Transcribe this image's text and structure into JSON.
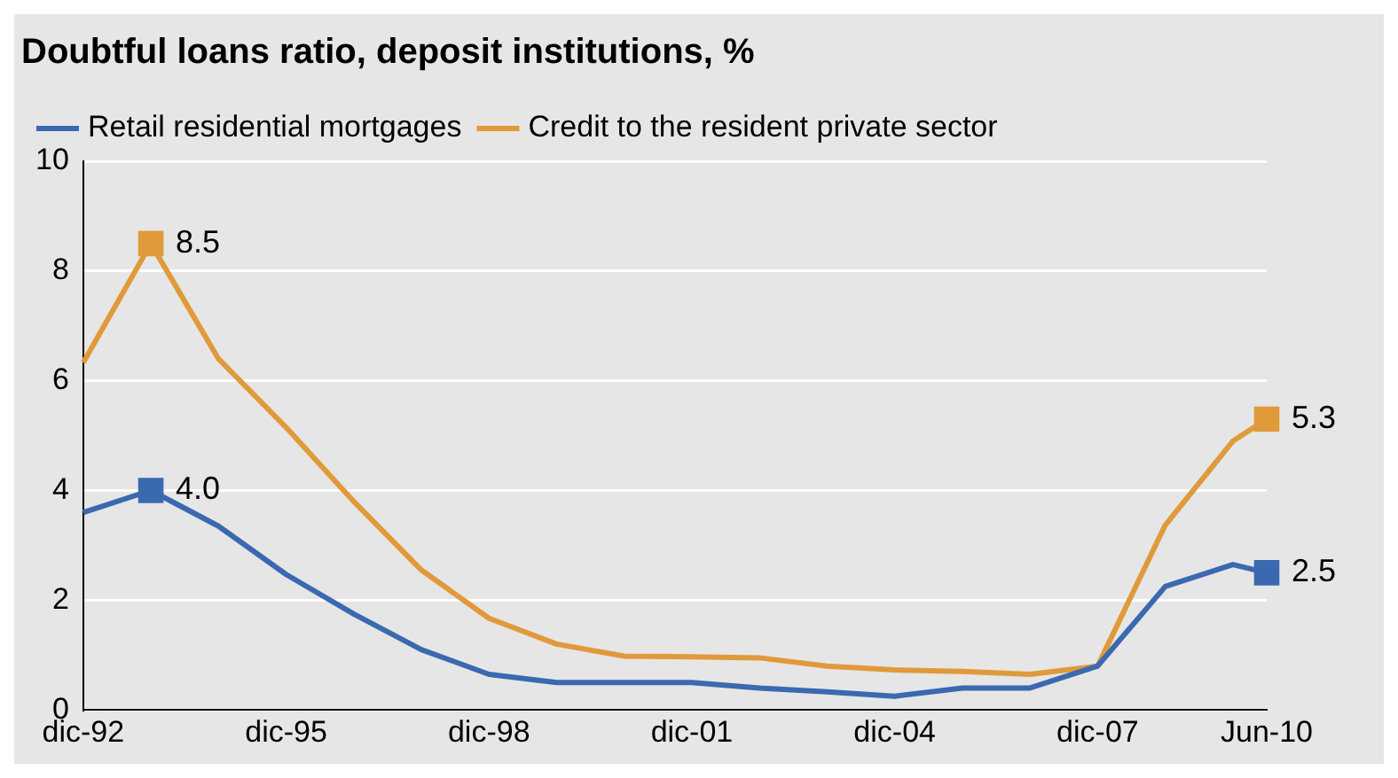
{
  "chart_data": {
    "type": "line",
    "title": "Doubtful loans ratio, deposit institutions, %",
    "x": [
      "1992-12",
      "1993-12",
      "1994-12",
      "1995-12",
      "1996-12",
      "1997-12",
      "1998-12",
      "1999-12",
      "2000-12",
      "2001-12",
      "2002-12",
      "2003-12",
      "2004-12",
      "2005-12",
      "2006-12",
      "2007-12",
      "2008-12",
      "2009-12",
      "2010-06"
    ],
    "series": [
      {
        "name": "Retail residential mortgages",
        "color": "#3b69b0",
        "values": [
          3.6,
          4.0,
          3.35,
          2.47,
          1.75,
          1.1,
          0.65,
          0.5,
          0.5,
          0.5,
          0.4,
          0.33,
          0.25,
          0.4,
          0.4,
          0.8,
          2.25,
          2.65,
          2.5
        ],
        "value_labels": [
          null,
          "4.0",
          null,
          null,
          null,
          null,
          null,
          null,
          null,
          null,
          null,
          null,
          null,
          null,
          null,
          null,
          null,
          null,
          "2.5"
        ]
      },
      {
        "name": "Credit to the resident private sector",
        "color": "#e09a3a",
        "values": [
          6.33,
          8.5,
          6.4,
          5.15,
          3.8,
          2.55,
          1.67,
          1.2,
          0.98,
          0.97,
          0.95,
          0.8,
          0.73,
          0.7,
          0.65,
          0.8,
          3.37,
          4.9,
          5.3
        ],
        "value_labels": [
          null,
          "8.5",
          null,
          null,
          null,
          null,
          null,
          null,
          null,
          null,
          null,
          null,
          null,
          null,
          null,
          null,
          null,
          null,
          "5.3"
        ]
      }
    ],
    "xlim": [
      "1992-12",
      "2010-06"
    ],
    "xticks": [
      {
        "value": "1992-12",
        "label": "dic-92"
      },
      {
        "value": "1995-12",
        "label": "dic-95"
      },
      {
        "value": "1998-12",
        "label": "dic-98"
      },
      {
        "value": "2001-12",
        "label": "dic-01"
      },
      {
        "value": "2004-12",
        "label": "dic-04"
      },
      {
        "value": "2007-12",
        "label": "dic-07"
      },
      {
        "value": "2010-06",
        "label": "Jun-10"
      }
    ],
    "ylim": [
      0,
      10
    ],
    "yticks": [
      0,
      2,
      4,
      6,
      8,
      10
    ],
    "grid": "y",
    "legend": "top left",
    "line_style": "solid"
  }
}
